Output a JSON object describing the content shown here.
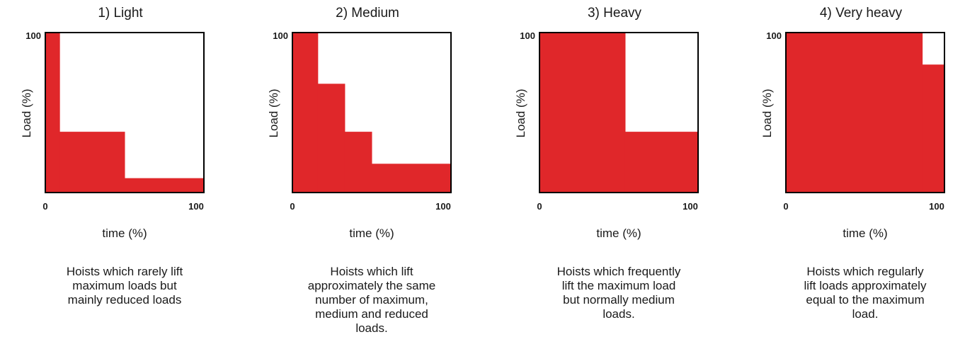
{
  "colors": {
    "fill": "#e0272a",
    "frame": "#000000"
  },
  "chart_data": [
    {
      "type": "area",
      "title": "1) Light",
      "xlabel": "time (%)",
      "ylabel": "Load (%)",
      "xlim": [
        0,
        100
      ],
      "ylim": [
        0,
        100
      ],
      "x_ticks": [
        "0",
        "100"
      ],
      "y_ticks": [
        "100"
      ],
      "steps": [
        {
          "x_start": 0,
          "x_end": 9,
          "y": 100
        },
        {
          "x_start": 9,
          "x_end": 50,
          "y": 38
        },
        {
          "x_start": 50,
          "x_end": 100,
          "y": 9
        }
      ],
      "description": "Hoists which rarely lift\nmaximum loads but\nmainly reduced loads"
    },
    {
      "type": "area",
      "title": "2) Medium",
      "xlabel": "time (%)",
      "ylabel": "Load (%)",
      "xlim": [
        0,
        100
      ],
      "ylim": [
        0,
        100
      ],
      "x_ticks": [
        "0",
        "100"
      ],
      "y_ticks": [
        "100"
      ],
      "steps": [
        {
          "x_start": 0,
          "x_end": 16,
          "y": 100
        },
        {
          "x_start": 16,
          "x_end": 33,
          "y": 68
        },
        {
          "x_start": 33,
          "x_end": 50,
          "y": 38
        },
        {
          "x_start": 50,
          "x_end": 100,
          "y": 18
        }
      ],
      "description": "Hoists which lift\napproximately the same\nnumber of maximum,\nmedium and reduced\nloads."
    },
    {
      "type": "area",
      "title": "3) Heavy",
      "xlabel": "time (%)",
      "ylabel": "Load (%)",
      "xlim": [
        0,
        100
      ],
      "ylim": [
        0,
        100
      ],
      "x_ticks": [
        "0",
        "100"
      ],
      "y_ticks": [
        "100"
      ],
      "steps": [
        {
          "x_start": 0,
          "x_end": 54,
          "y": 100
        },
        {
          "x_start": 54,
          "x_end": 100,
          "y": 38
        }
      ],
      "description": "Hoists which frequently\nlift the maximum load\nbut normally medium\nloads."
    },
    {
      "type": "area",
      "title": "4) Very heavy",
      "xlabel": "time (%)",
      "ylabel": "Load (%)",
      "xlim": [
        0,
        100
      ],
      "ylim": [
        0,
        100
      ],
      "x_ticks": [
        "0",
        "100"
      ],
      "y_ticks": [
        "100"
      ],
      "steps": [
        {
          "x_start": 0,
          "x_end": 86,
          "y": 100
        },
        {
          "x_start": 86,
          "x_end": 100,
          "y": 80
        }
      ],
      "description": "Hoists which regularly\nlift loads approximately\nequal to the maximum\nload."
    }
  ]
}
